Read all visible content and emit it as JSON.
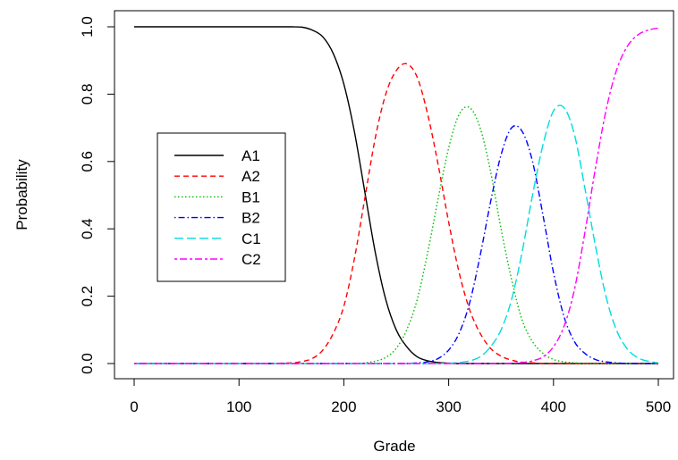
{
  "chart_data": {
    "type": "line",
    "title": "",
    "xlabel": "Grade",
    "ylabel": "Probability",
    "xlim": [
      0,
      500
    ],
    "ylim": [
      0,
      1
    ],
    "xticks": [
      "0",
      "100",
      "200",
      "300",
      "400",
      "500"
    ],
    "yticks": [
      "0.0",
      "0.2",
      "0.4",
      "0.6",
      "0.8",
      "1.0"
    ],
    "grid": false,
    "legend_position": "left",
    "x": [
      0,
      25,
      50,
      75,
      100,
      125,
      150,
      160,
      170,
      180,
      190,
      200,
      210,
      220,
      230,
      240,
      250,
      260,
      270,
      280,
      290,
      300,
      310,
      320,
      330,
      340,
      350,
      360,
      370,
      380,
      390,
      400,
      410,
      420,
      430,
      440,
      450,
      460,
      470,
      480,
      490,
      500
    ],
    "series": [
      {
        "name": "A1",
        "color": "#000000",
        "dash": "solid",
        "values": [
          1.0,
          1.0,
          1.0,
          1.0,
          1.0,
          1.0,
          1.0,
          0.999,
          0.99,
          0.97,
          0.92,
          0.83,
          0.69,
          0.51,
          0.33,
          0.19,
          0.1,
          0.05,
          0.02,
          0.008,
          0.003,
          0.001,
          0,
          0,
          0,
          0,
          0,
          0,
          0,
          0,
          0,
          0,
          0,
          0,
          0,
          0,
          0,
          0,
          0,
          0,
          0,
          0
        ]
      },
      {
        "name": "A2",
        "color": "#ff0000",
        "dash": "dashed",
        "values": [
          0,
          0,
          0,
          0,
          0,
          0,
          0.002,
          0.006,
          0.015,
          0.04,
          0.09,
          0.17,
          0.31,
          0.49,
          0.67,
          0.8,
          0.87,
          0.89,
          0.85,
          0.74,
          0.59,
          0.42,
          0.27,
          0.16,
          0.09,
          0.045,
          0.022,
          0.01,
          0.004,
          0.002,
          0,
          0,
          0,
          0,
          0,
          0,
          0,
          0,
          0,
          0,
          0,
          0
        ]
      },
      {
        "name": "B1",
        "color": "#00bb00",
        "dash": "dotted",
        "values": [
          0,
          0,
          0,
          0,
          0,
          0,
          0,
          0,
          0,
          0,
          0,
          0,
          0,
          0.002,
          0.007,
          0.018,
          0.045,
          0.1,
          0.19,
          0.33,
          0.49,
          0.64,
          0.74,
          0.76,
          0.7,
          0.57,
          0.4,
          0.25,
          0.13,
          0.065,
          0.03,
          0.012,
          0.005,
          0.002,
          0,
          0,
          0,
          0,
          0,
          0,
          0,
          0
        ]
      },
      {
        "name": "B2",
        "color": "#0000ff",
        "dash": "dashdot",
        "values": [
          0,
          0,
          0,
          0,
          0,
          0,
          0,
          0,
          0,
          0,
          0,
          0,
          0,
          0,
          0,
          0,
          0,
          0,
          0.002,
          0.005,
          0.015,
          0.04,
          0.09,
          0.18,
          0.32,
          0.48,
          0.62,
          0.7,
          0.69,
          0.6,
          0.44,
          0.27,
          0.14,
          0.065,
          0.03,
          0.012,
          0.005,
          0.002,
          0,
          0,
          0,
          0
        ]
      },
      {
        "name": "C1",
        "color": "#00dddd",
        "dash": "longdash",
        "values": [
          0,
          0,
          0,
          0,
          0,
          0,
          0,
          0,
          0,
          0,
          0,
          0,
          0,
          0,
          0,
          0,
          0,
          0,
          0,
          0,
          0,
          0.001,
          0.003,
          0.008,
          0.02,
          0.05,
          0.1,
          0.19,
          0.33,
          0.5,
          0.65,
          0.75,
          0.76,
          0.68,
          0.52,
          0.35,
          0.2,
          0.1,
          0.045,
          0.018,
          0.007,
          0.002
        ]
      },
      {
        "name": "C2",
        "color": "#ff00ff",
        "dash": "twodash",
        "values": [
          0,
          0,
          0,
          0,
          0,
          0,
          0,
          0,
          0,
          0,
          0,
          0,
          0,
          0,
          0,
          0,
          0,
          0,
          0,
          0,
          0,
          0,
          0,
          0,
          0,
          0,
          0,
          0.001,
          0.003,
          0.008,
          0.02,
          0.05,
          0.11,
          0.22,
          0.39,
          0.58,
          0.75,
          0.87,
          0.94,
          0.975,
          0.99,
          0.996
        ]
      }
    ]
  }
}
